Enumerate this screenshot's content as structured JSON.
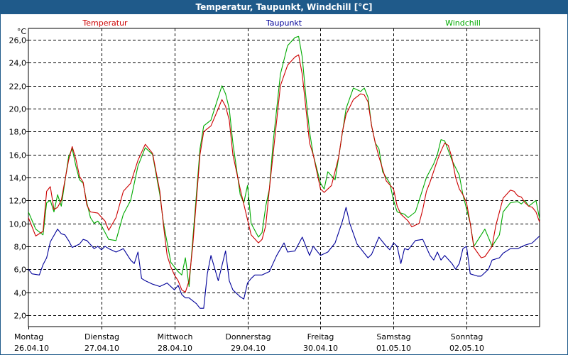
{
  "title": "Temperatur, Taupunkt, Windchill [°C]",
  "chart_data": {
    "type": "line",
    "title": "Temperatur, Taupunkt, Windchill [°C]",
    "ylabel": "°C",
    "ylim": [
      1.0,
      27.0
    ],
    "xlim": [
      0,
      7
    ],
    "grid": true,
    "yticks": [
      "2,0",
      "4,0",
      "6,0",
      "8,0",
      "10,0",
      "12,0",
      "14,0",
      "16,0",
      "18,0",
      "20,0",
      "22,0",
      "24,0",
      "26,0"
    ],
    "days": [
      {
        "weekday": "Montag",
        "date": "26.04.10"
      },
      {
        "weekday": "Dienstag",
        "date": "27.04.10"
      },
      {
        "weekday": "Mittwoch",
        "date": "28.04.10"
      },
      {
        "weekday": "Donnerstag",
        "date": "29.04.10"
      },
      {
        "weekday": "Freitag",
        "date": "30.04.10"
      },
      {
        "weekday": "Samstag",
        "date": "01.05.10"
      },
      {
        "weekday": "Sonntag",
        "date": "02.05.10"
      }
    ],
    "series": [
      {
        "name": "Temperatur",
        "color": "#cc0000",
        "points": [
          [
            0,
            10.5
          ],
          [
            0.1,
            8.9
          ],
          [
            0.2,
            9.3
          ],
          [
            0.25,
            12.8
          ],
          [
            0.3,
            13.2
          ],
          [
            0.35,
            11.2
          ],
          [
            0.4,
            11.4
          ],
          [
            0.45,
            12.0
          ],
          [
            0.55,
            15.5
          ],
          [
            0.6,
            16.7
          ],
          [
            0.65,
            15.6
          ],
          [
            0.7,
            14.1
          ],
          [
            0.75,
            13.6
          ],
          [
            0.8,
            11.6
          ],
          [
            0.85,
            11.0
          ],
          [
            0.95,
            10.9
          ],
          [
            1.05,
            10.2
          ],
          [
            1.1,
            9.4
          ],
          [
            1.2,
            10.5
          ],
          [
            1.3,
            12.8
          ],
          [
            1.4,
            13.5
          ],
          [
            1.5,
            15.5
          ],
          [
            1.6,
            16.9
          ],
          [
            1.7,
            16.1
          ],
          [
            1.8,
            12.8
          ],
          [
            1.85,
            9.8
          ],
          [
            1.9,
            7.2
          ],
          [
            1.95,
            6.2
          ],
          [
            2.0,
            5.5
          ],
          [
            2.05,
            5.0
          ],
          [
            2.1,
            4.2
          ],
          [
            2.15,
            4.0
          ],
          [
            2.2,
            5.0
          ],
          [
            2.25,
            8.0
          ],
          [
            2.3,
            12.0
          ],
          [
            2.35,
            16.0
          ],
          [
            2.4,
            18.0
          ],
          [
            2.5,
            18.5
          ],
          [
            2.6,
            20.0
          ],
          [
            2.65,
            20.8
          ],
          [
            2.7,
            20.2
          ],
          [
            2.75,
            19.0
          ],
          [
            2.8,
            16.0
          ],
          [
            2.9,
            13.0
          ],
          [
            3.05,
            9.0
          ],
          [
            3.15,
            8.3
          ],
          [
            3.2,
            8.6
          ],
          [
            3.25,
            9.8
          ],
          [
            3.3,
            13.0
          ],
          [
            3.35,
            16.0
          ],
          [
            3.45,
            22.0
          ],
          [
            3.55,
            23.8
          ],
          [
            3.65,
            24.5
          ],
          [
            3.7,
            24.7
          ],
          [
            3.75,
            23.0
          ],
          [
            3.8,
            20.0
          ],
          [
            3.85,
            17.0
          ],
          [
            3.9,
            16.0
          ],
          [
            4.0,
            13.0
          ],
          [
            4.05,
            12.7
          ],
          [
            4.15,
            13.3
          ],
          [
            4.25,
            15.8
          ],
          [
            4.3,
            18.0
          ],
          [
            4.35,
            19.5
          ],
          [
            4.45,
            20.8
          ],
          [
            4.55,
            21.3
          ],
          [
            4.6,
            21.2
          ],
          [
            4.65,
            20.6
          ],
          [
            4.7,
            18.5
          ],
          [
            4.75,
            17.0
          ],
          [
            4.8,
            15.8
          ],
          [
            4.9,
            13.7
          ],
          [
            5.0,
            13.0
          ],
          [
            5.05,
            11.5
          ],
          [
            5.1,
            10.8
          ],
          [
            5.2,
            10.2
          ],
          [
            5.25,
            9.7
          ],
          [
            5.35,
            10.0
          ],
          [
            5.4,
            11.2
          ],
          [
            5.45,
            12.8
          ],
          [
            5.5,
            13.6
          ],
          [
            5.6,
            15.5
          ],
          [
            5.65,
            16.3
          ],
          [
            5.7,
            17.0
          ],
          [
            5.75,
            16.8
          ],
          [
            5.8,
            15.7
          ],
          [
            5.85,
            14.0
          ],
          [
            5.9,
            13.0
          ],
          [
            5.95,
            12.5
          ],
          [
            6.0,
            11.8
          ],
          [
            6.05,
            10.0
          ],
          [
            6.1,
            7.9
          ],
          [
            6.2,
            7.0
          ],
          [
            6.25,
            7.1
          ],
          [
            6.35,
            8.0
          ],
          [
            6.4,
            9.8
          ],
          [
            6.5,
            12.2
          ],
          [
            6.6,
            12.9
          ],
          [
            6.65,
            12.8
          ],
          [
            6.7,
            12.4
          ],
          [
            6.75,
            12.3
          ],
          [
            6.8,
            11.8
          ],
          [
            6.85,
            11.5
          ],
          [
            6.9,
            11.4
          ],
          [
            6.95,
            11.0
          ],
          [
            7.0,
            10.1
          ]
        ]
      },
      {
        "name": "Taupunkt",
        "color": "#000099",
        "points": [
          [
            0,
            6.0
          ],
          [
            0.05,
            5.6
          ],
          [
            0.15,
            5.5
          ],
          [
            0.2,
            6.4
          ],
          [
            0.25,
            7.0
          ],
          [
            0.3,
            8.4
          ],
          [
            0.4,
            9.5
          ],
          [
            0.45,
            9.1
          ],
          [
            0.5,
            9.0
          ],
          [
            0.55,
            8.5
          ],
          [
            0.6,
            7.9
          ],
          [
            0.7,
            8.2
          ],
          [
            0.75,
            8.6
          ],
          [
            0.8,
            8.5
          ],
          [
            0.9,
            7.8
          ],
          [
            0.95,
            8.0
          ],
          [
            1.0,
            7.7
          ],
          [
            1.05,
            8.0
          ],
          [
            1.1,
            7.8
          ],
          [
            1.2,
            7.5
          ],
          [
            1.3,
            7.8
          ],
          [
            1.4,
            6.8
          ],
          [
            1.45,
            6.5
          ],
          [
            1.5,
            7.5
          ],
          [
            1.55,
            5.2
          ],
          [
            1.6,
            5.0
          ],
          [
            1.7,
            4.7
          ],
          [
            1.8,
            4.5
          ],
          [
            1.9,
            4.8
          ],
          [
            2.0,
            4.2
          ],
          [
            2.05,
            4.6
          ],
          [
            2.1,
            3.8
          ],
          [
            2.15,
            3.5
          ],
          [
            2.2,
            3.5
          ],
          [
            2.3,
            3.0
          ],
          [
            2.35,
            2.6
          ],
          [
            2.4,
            2.6
          ],
          [
            2.45,
            5.6
          ],
          [
            2.5,
            7.2
          ],
          [
            2.6,
            5.0
          ],
          [
            2.7,
            7.6
          ],
          [
            2.75,
            5.0
          ],
          [
            2.8,
            4.2
          ],
          [
            2.9,
            3.6
          ],
          [
            2.95,
            3.4
          ],
          [
            3.0,
            4.8
          ],
          [
            3.05,
            5.2
          ],
          [
            3.1,
            5.5
          ],
          [
            3.2,
            5.5
          ],
          [
            3.3,
            5.8
          ],
          [
            3.4,
            7.2
          ],
          [
            3.5,
            8.3
          ],
          [
            3.55,
            7.5
          ],
          [
            3.65,
            7.6
          ],
          [
            3.75,
            8.8
          ],
          [
            3.85,
            7.2
          ],
          [
            3.9,
            8.0
          ],
          [
            4.0,
            7.2
          ],
          [
            4.1,
            7.5
          ],
          [
            4.2,
            8.3
          ],
          [
            4.3,
            10.2
          ],
          [
            4.35,
            11.4
          ],
          [
            4.4,
            10.0
          ],
          [
            4.5,
            8.2
          ],
          [
            4.6,
            7.4
          ],
          [
            4.65,
            7.0
          ],
          [
            4.7,
            7.3
          ],
          [
            4.8,
            8.8
          ],
          [
            4.9,
            8.0
          ],
          [
            4.95,
            7.7
          ],
          [
            5.0,
            8.3
          ],
          [
            5.05,
            8.0
          ],
          [
            5.1,
            6.5
          ],
          [
            5.15,
            7.8
          ],
          [
            5.2,
            7.7
          ],
          [
            5.3,
            8.5
          ],
          [
            5.4,
            8.6
          ],
          [
            5.5,
            7.2
          ],
          [
            5.55,
            6.8
          ],
          [
            5.6,
            7.5
          ],
          [
            5.65,
            6.8
          ],
          [
            5.7,
            7.2
          ],
          [
            5.8,
            6.5
          ],
          [
            5.85,
            6.0
          ],
          [
            5.9,
            6.5
          ],
          [
            5.95,
            7.8
          ],
          [
            6.0,
            8.0
          ],
          [
            6.05,
            5.6
          ],
          [
            6.15,
            5.4
          ],
          [
            6.2,
            5.4
          ],
          [
            6.3,
            6.0
          ],
          [
            6.35,
            6.8
          ],
          [
            6.45,
            7.0
          ],
          [
            6.5,
            7.4
          ],
          [
            6.6,
            7.8
          ],
          [
            6.7,
            7.8
          ],
          [
            6.8,
            8.1
          ],
          [
            6.9,
            8.3
          ],
          [
            7.0,
            8.9
          ]
        ]
      },
      {
        "name": "Windchill",
        "color": "#00aa00",
        "points": [
          [
            0,
            11.0
          ],
          [
            0.1,
            9.5
          ],
          [
            0.2,
            9.0
          ],
          [
            0.25,
            11.8
          ],
          [
            0.3,
            12.0
          ],
          [
            0.35,
            11.0
          ],
          [
            0.4,
            12.5
          ],
          [
            0.45,
            11.5
          ],
          [
            0.55,
            15.8
          ],
          [
            0.6,
            16.5
          ],
          [
            0.65,
            15.0
          ],
          [
            0.7,
            13.8
          ],
          [
            0.75,
            13.5
          ],
          [
            0.8,
            11.8
          ],
          [
            0.85,
            10.5
          ],
          [
            0.9,
            10.0
          ],
          [
            0.95,
            10.2
          ],
          [
            1.0,
            9.8
          ],
          [
            1.1,
            8.6
          ],
          [
            1.2,
            8.5
          ],
          [
            1.3,
            10.8
          ],
          [
            1.4,
            12.0
          ],
          [
            1.5,
            15.0
          ],
          [
            1.6,
            16.6
          ],
          [
            1.7,
            16.0
          ],
          [
            1.8,
            12.5
          ],
          [
            1.85,
            10.0
          ],
          [
            1.95,
            6.6
          ],
          [
            2.05,
            5.8
          ],
          [
            2.1,
            5.5
          ],
          [
            2.15,
            7.0
          ],
          [
            2.2,
            4.5
          ],
          [
            2.25,
            8.5
          ],
          [
            2.3,
            12.5
          ],
          [
            2.35,
            16.5
          ],
          [
            2.4,
            18.5
          ],
          [
            2.5,
            19.0
          ],
          [
            2.6,
            21.0
          ],
          [
            2.65,
            22.0
          ],
          [
            2.7,
            21.3
          ],
          [
            2.75,
            20.0
          ],
          [
            2.8,
            17.0
          ],
          [
            2.9,
            12.5
          ],
          [
            2.95,
            11.8
          ],
          [
            3.0,
            13.3
          ],
          [
            3.05,
            10.0
          ],
          [
            3.15,
            8.8
          ],
          [
            3.2,
            9.2
          ],
          [
            3.25,
            11.5
          ],
          [
            3.3,
            13.0
          ],
          [
            3.35,
            17.0
          ],
          [
            3.45,
            23.0
          ],
          [
            3.55,
            25.5
          ],
          [
            3.65,
            26.2
          ],
          [
            3.7,
            26.3
          ],
          [
            3.75,
            24.5
          ],
          [
            3.8,
            21.0
          ],
          [
            3.85,
            18.0
          ],
          [
            3.9,
            16.0
          ],
          [
            4.0,
            13.5
          ],
          [
            4.05,
            13.0
          ],
          [
            4.1,
            14.5
          ],
          [
            4.2,
            13.8
          ],
          [
            4.25,
            15.8
          ],
          [
            4.35,
            20.0
          ],
          [
            4.45,
            21.8
          ],
          [
            4.55,
            21.5
          ],
          [
            4.6,
            21.8
          ],
          [
            4.65,
            21.0
          ],
          [
            4.7,
            18.5
          ],
          [
            4.75,
            17.0
          ],
          [
            4.8,
            16.5
          ],
          [
            4.85,
            14.5
          ],
          [
            4.95,
            13.5
          ],
          [
            5.0,
            12.0
          ],
          [
            5.05,
            11.0
          ],
          [
            5.15,
            10.8
          ],
          [
            5.2,
            10.5
          ],
          [
            5.3,
            11.0
          ],
          [
            5.35,
            12.0
          ],
          [
            5.45,
            14.0
          ],
          [
            5.55,
            15.2
          ],
          [
            5.6,
            16.0
          ],
          [
            5.65,
            17.3
          ],
          [
            5.7,
            17.2
          ],
          [
            5.8,
            15.5
          ],
          [
            5.9,
            14.2
          ],
          [
            5.95,
            12.5
          ],
          [
            6.05,
            10.0
          ],
          [
            6.1,
            8.0
          ],
          [
            6.2,
            9.0
          ],
          [
            6.25,
            9.5
          ],
          [
            6.35,
            8.0
          ],
          [
            6.45,
            9.0
          ],
          [
            6.5,
            11.0
          ],
          [
            6.6,
            11.8
          ],
          [
            6.7,
            11.9
          ],
          [
            6.75,
            11.7
          ],
          [
            6.8,
            12.0
          ],
          [
            6.85,
            11.5
          ],
          [
            6.95,
            12.0
          ],
          [
            7.0,
            10.4
          ]
        ]
      }
    ]
  }
}
